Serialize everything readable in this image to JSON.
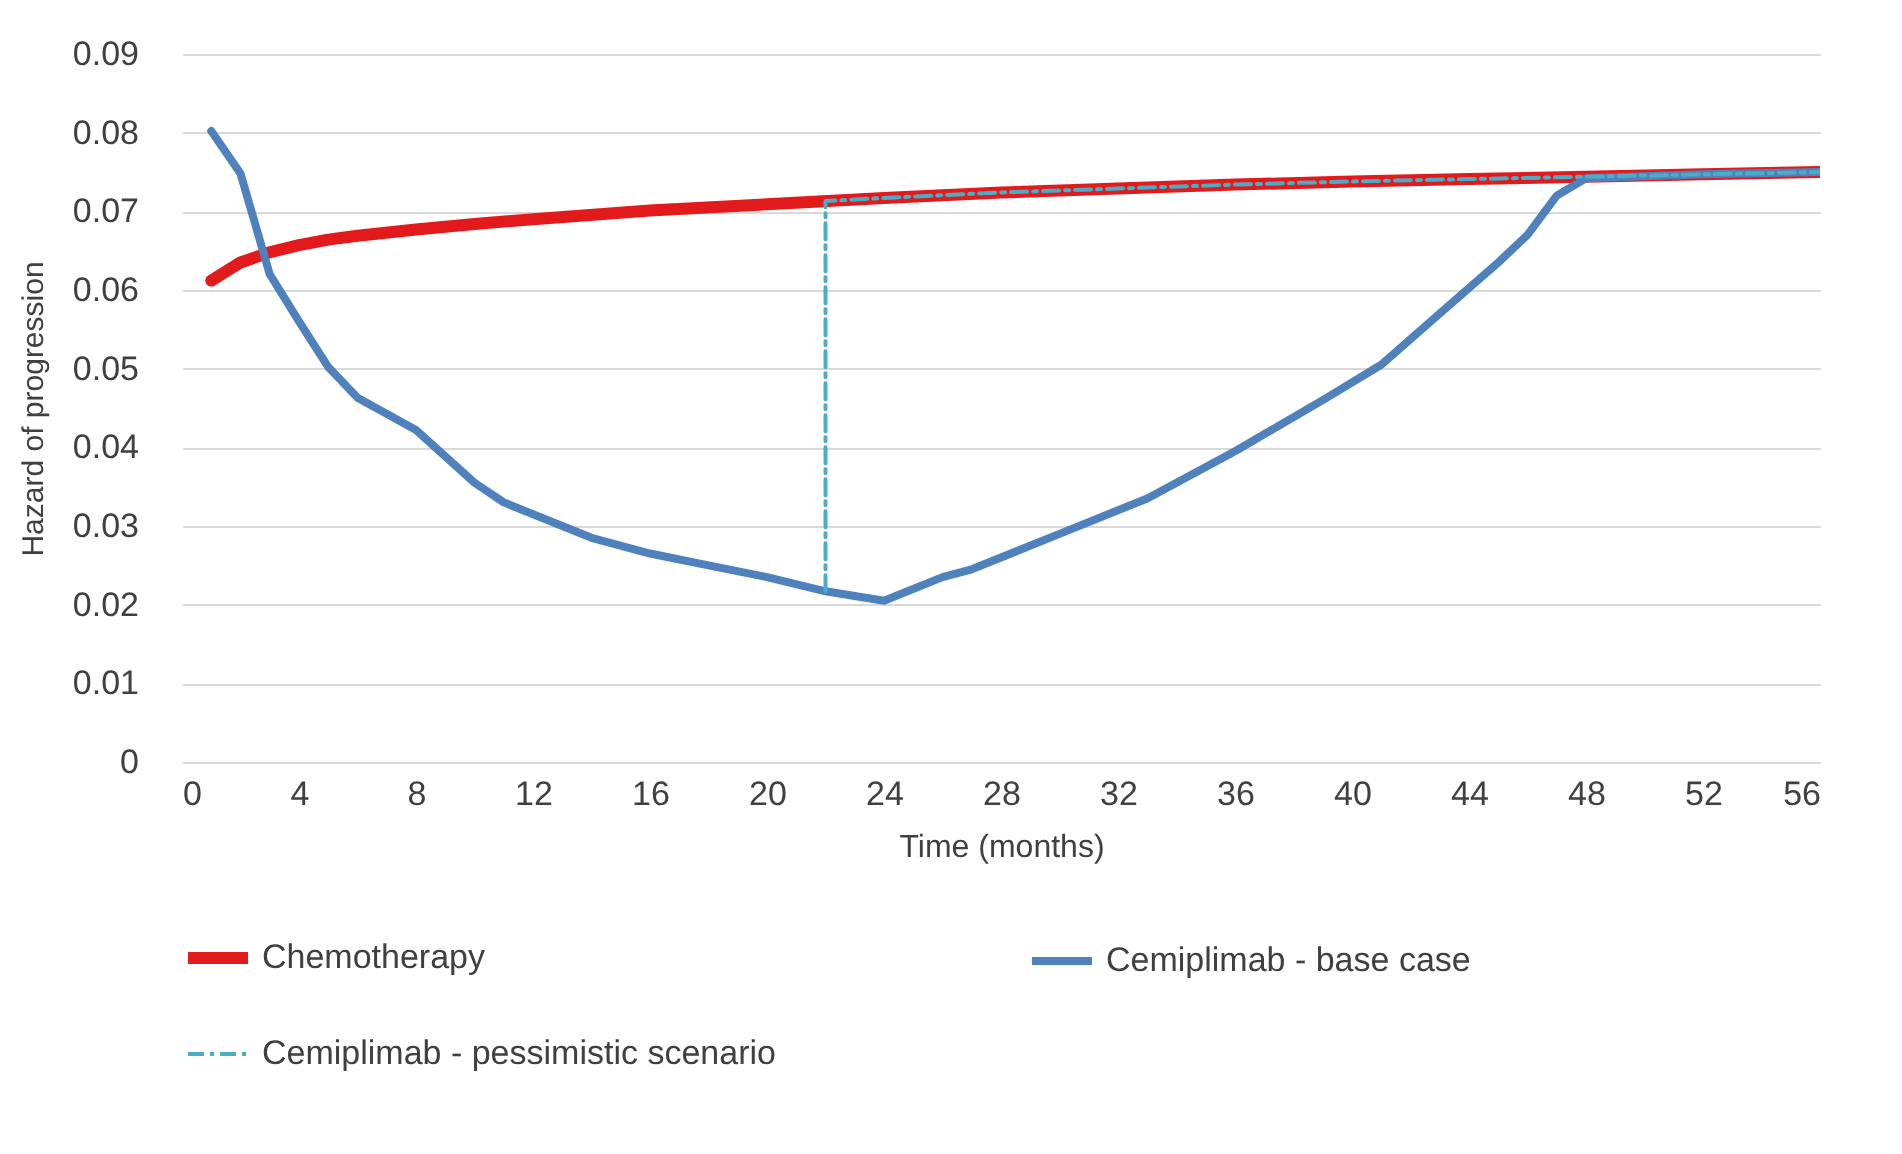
{
  "chart_data": {
    "type": "line",
    "xlabel": "Time (months)",
    "ylabel": "Hazard of progression",
    "xlim": [
      0,
      56
    ],
    "xticks": [
      0,
      4,
      8,
      12,
      16,
      20,
      24,
      28,
      32,
      36,
      40,
      44,
      48,
      52,
      56
    ],
    "ylim": [
      0,
      0.09
    ],
    "yticks": [
      0,
      0.01,
      0.02,
      0.03,
      0.04,
      0.05,
      0.06,
      0.07,
      0.08,
      0.09
    ],
    "grid": "y",
    "legend": "bottom",
    "marker": "none",
    "series": [
      {
        "name": "Chemotherapy",
        "color": "#e31a1c",
        "line_style": "solid",
        "x": [
          1,
          2,
          3,
          4,
          5,
          6,
          8,
          10,
          12,
          16,
          20,
          24,
          28,
          32,
          36,
          40,
          44,
          48,
          52,
          56
        ],
        "values": [
          0.0612,
          0.0635,
          0.0648,
          0.0657,
          0.0664,
          0.0669,
          0.0677,
          0.0684,
          0.069,
          0.0701,
          0.0709,
          0.0717,
          0.0724,
          0.0729,
          0.0734,
          0.0738,
          0.0741,
          0.0744,
          0.0747,
          0.075
        ]
      },
      {
        "name": "Cemiplimab - base case",
        "color": "#4f81bd",
        "line_style": "solid",
        "x": [
          1,
          2,
          3,
          4,
          5,
          6,
          8,
          10,
          11,
          14,
          16,
          18,
          20,
          22,
          24,
          26,
          27,
          30,
          33,
          36,
          39,
          41,
          43,
          45,
          46,
          47,
          48,
          52,
          56
        ],
        "values": [
          0.0802,
          0.0748,
          0.062,
          0.056,
          0.0502,
          0.0463,
          0.0422,
          0.0355,
          0.033,
          0.0285,
          0.0265,
          0.025,
          0.0235,
          0.0217,
          0.0205,
          0.0235,
          0.0245,
          0.029,
          0.0335,
          0.0395,
          0.046,
          0.0505,
          0.057,
          0.0635,
          0.067,
          0.072,
          0.0742,
          0.0747,
          0.075
        ]
      },
      {
        "name": "Cemiplimab - pessimistic scenario",
        "color": "#4bacc6",
        "line_style": "dashed",
        "x": [
          22,
          22,
          24,
          28,
          32,
          36,
          40,
          44,
          48,
          52,
          56
        ],
        "values": [
          0.0217,
          0.0713,
          0.0717,
          0.0724,
          0.0729,
          0.0734,
          0.0738,
          0.0741,
          0.0744,
          0.0747,
          0.075
        ]
      }
    ]
  }
}
